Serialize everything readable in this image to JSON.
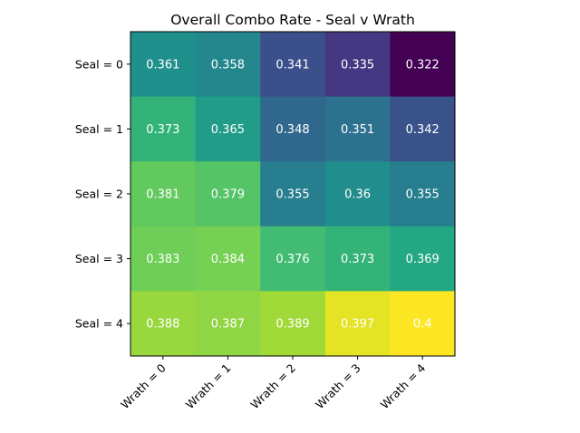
{
  "chart_data": {
    "type": "heatmap",
    "title": "Overall Combo Rate - Seal v Wrath",
    "xlabel": "",
    "ylabel": "",
    "x_categories": [
      "Wrath = 0",
      "Wrath = 1",
      "Wrath = 2",
      "Wrath = 3",
      "Wrath = 4"
    ],
    "y_categories": [
      "Seal = 0",
      "Seal = 1",
      "Seal = 2",
      "Seal = 3",
      "Seal = 4"
    ],
    "values": [
      [
        0.361,
        0.358,
        0.341,
        0.335,
        0.322
      ],
      [
        0.373,
        0.365,
        0.348,
        0.351,
        0.342
      ],
      [
        0.381,
        0.379,
        0.355,
        0.36,
        0.355
      ],
      [
        0.383,
        0.384,
        0.376,
        0.373,
        0.369
      ],
      [
        0.388,
        0.387,
        0.389,
        0.397,
        0.4
      ]
    ],
    "value_labels": [
      [
        "0.361",
        "0.358",
        "0.341",
        "0.335",
        "0.322"
      ],
      [
        "0.373",
        "0.365",
        "0.348",
        "0.351",
        "0.342"
      ],
      [
        "0.381",
        "0.379",
        "0.355",
        "0.36",
        "0.355"
      ],
      [
        "0.383",
        "0.384",
        "0.376",
        "0.373",
        "0.369"
      ],
      [
        "0.388",
        "0.387",
        "0.389",
        "0.397",
        "0.4"
      ]
    ],
    "colormap": "viridis",
    "vmin": 0.322,
    "vmax": 0.4,
    "grid": false,
    "x_tick_rotation": 45
  }
}
